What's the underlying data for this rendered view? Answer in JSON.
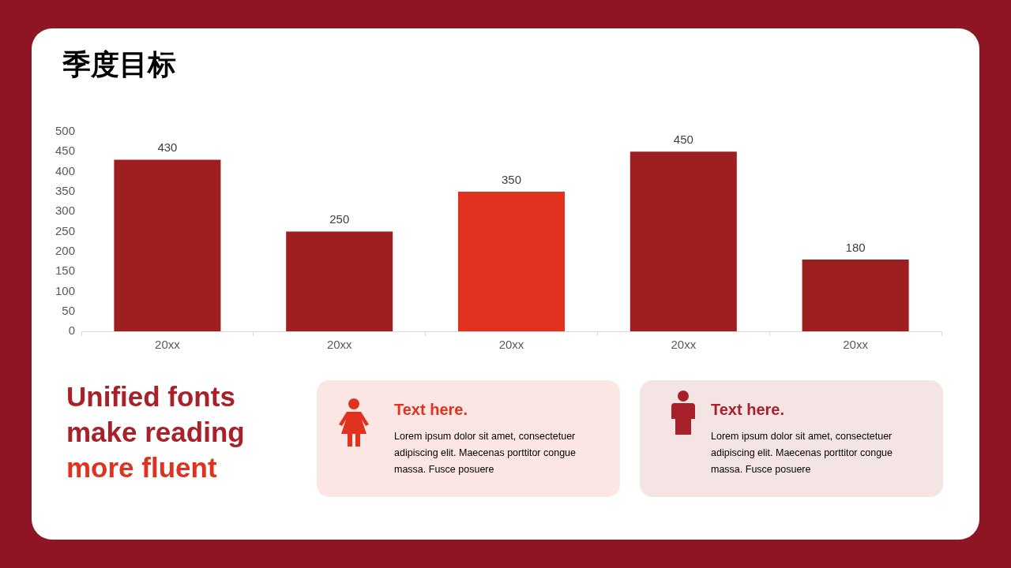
{
  "chart_data": {
    "type": "bar",
    "title": "季度目标",
    "categories": [
      "20xx",
      "20xx",
      "20xx",
      "20xx",
      "20xx"
    ],
    "values": [
      430,
      250,
      350,
      450,
      180
    ],
    "colors": [
      "#9e1f20",
      "#9e1f20",
      "#e0321f",
      "#9e1f20",
      "#9e1f20"
    ],
    "ylim": [
      0,
      500
    ],
    "yticks": [
      0,
      50,
      100,
      150,
      200,
      250,
      300,
      350,
      400,
      450,
      500
    ],
    "grid": false,
    "legend": false,
    "data_labels": true,
    "annotations": [
      "Unified fonts make reading",
      "more fluent",
      "Text here.",
      "Lorem ipsum dolor sit amet, consectetuer adipiscing elit. Maecenas porttitor congue massa. Fusce posuere",
      "Text here.",
      "Lorem ipsum dolor sit amet, consectetuer adipiscing elit. Maecenas porttitor congue massa. Fusce posuere"
    ]
  }
}
